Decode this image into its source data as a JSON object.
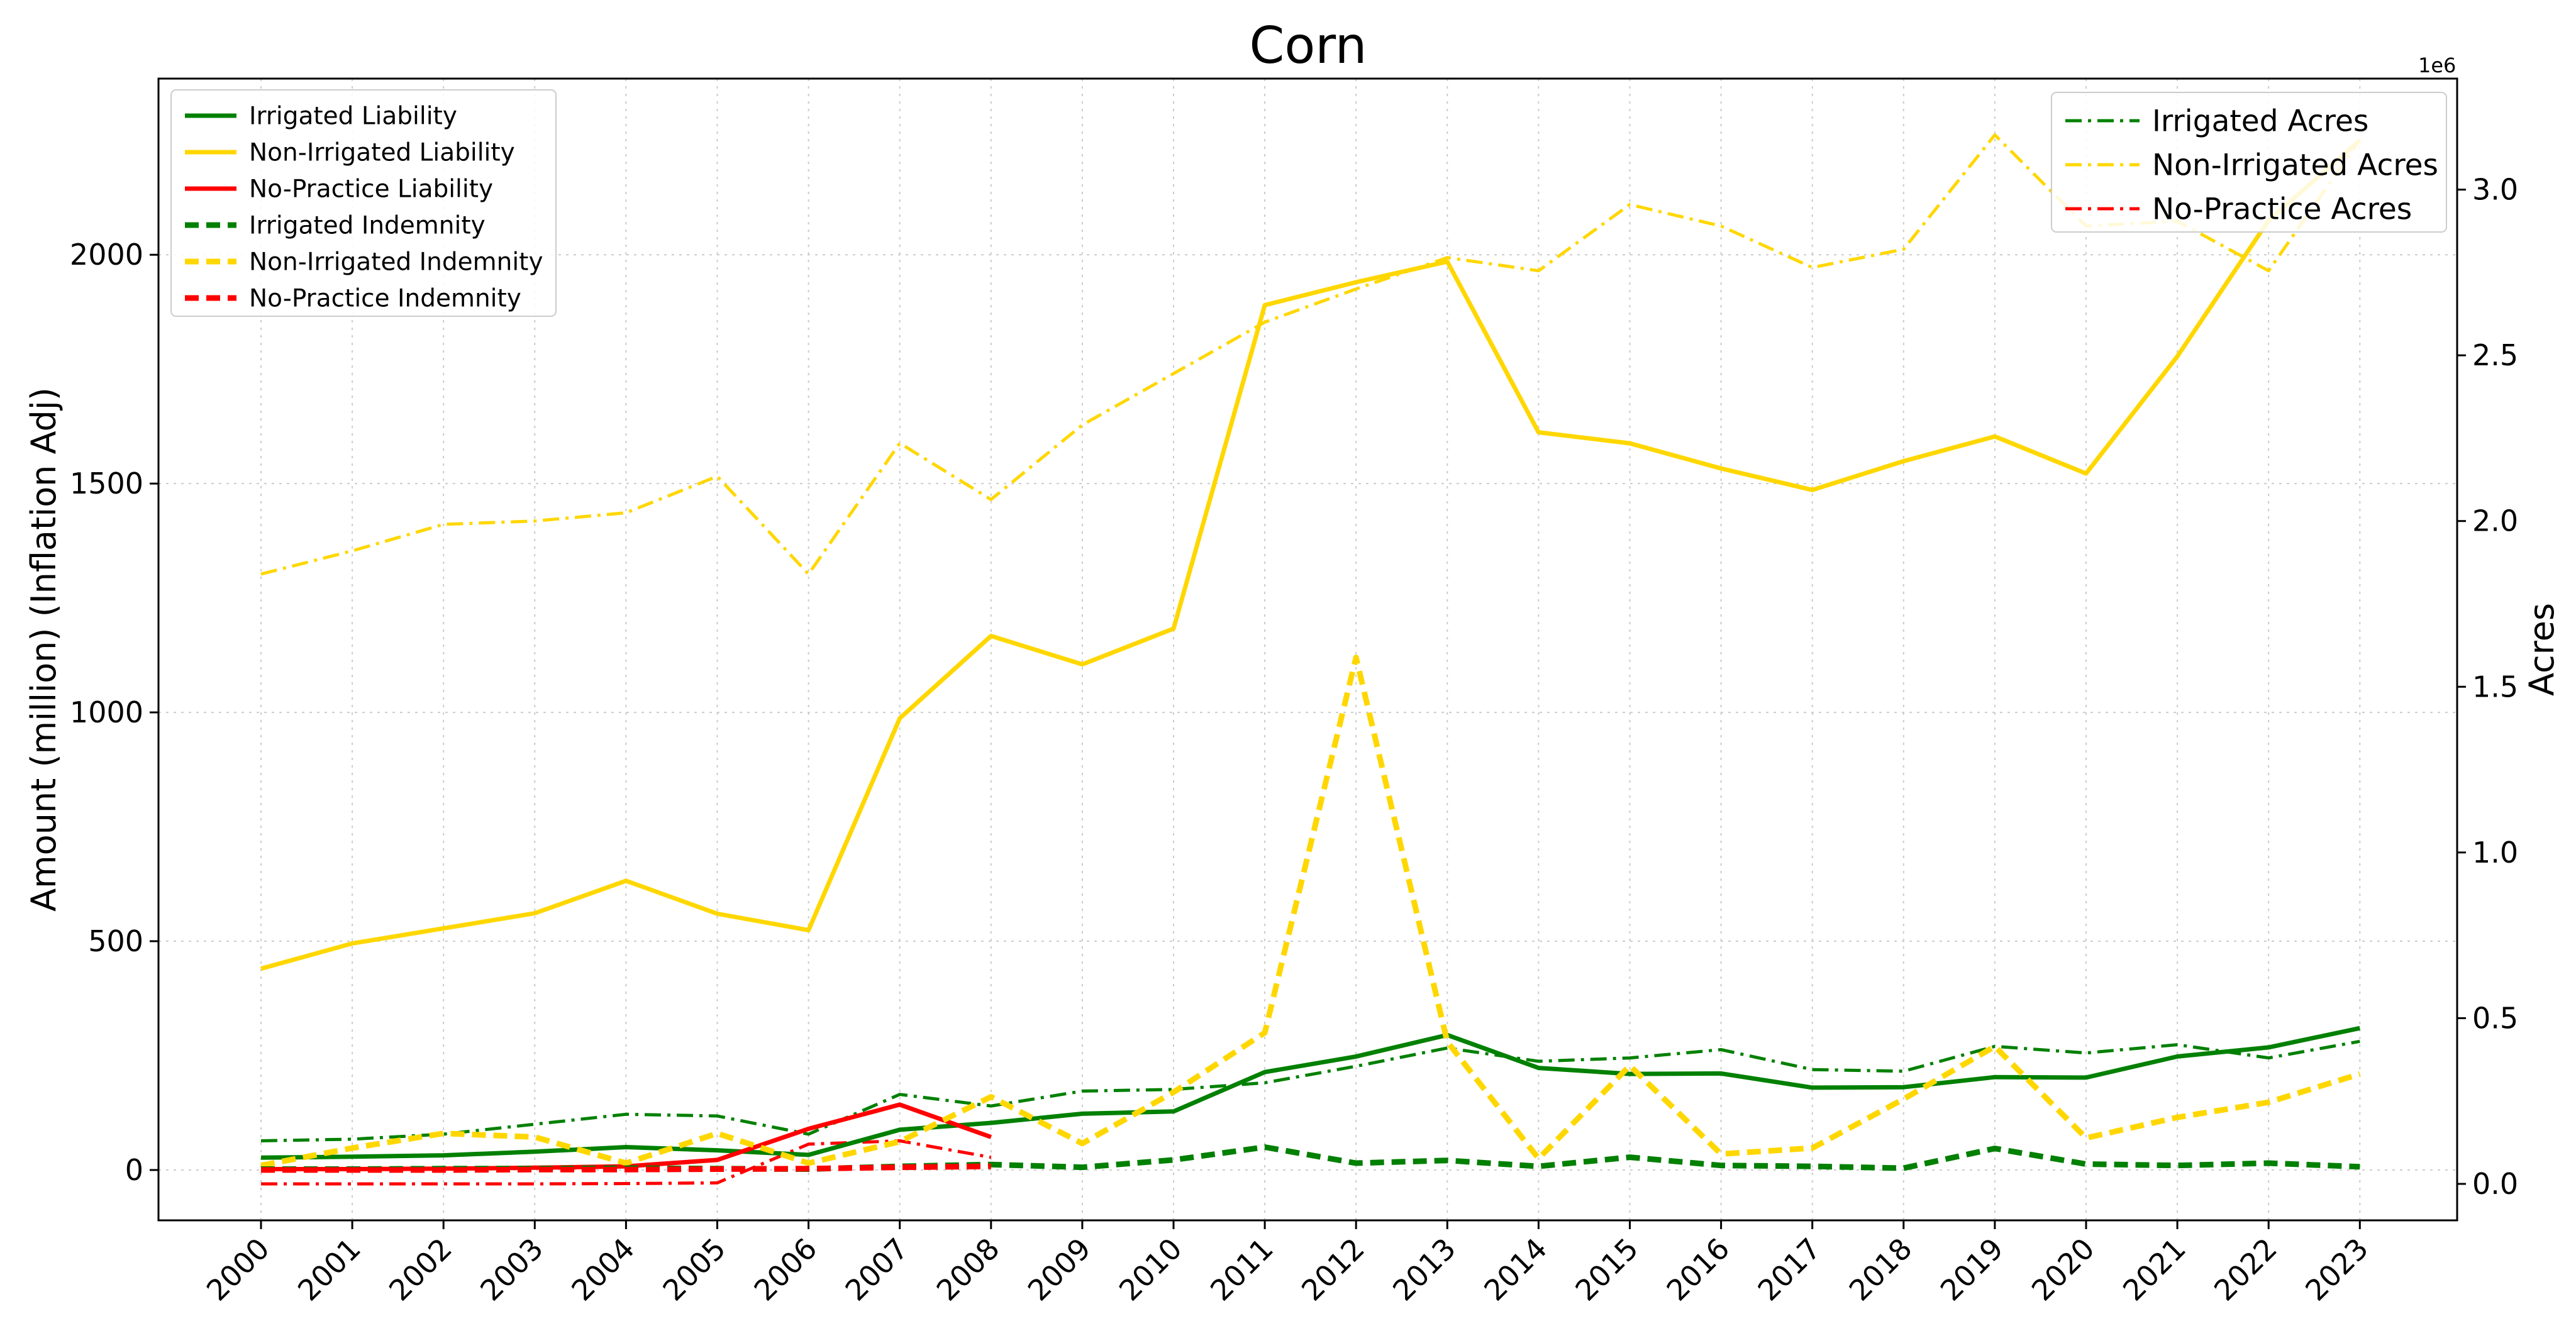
{
  "chart_data": {
    "type": "line",
    "title": "Corn",
    "xlabel": "",
    "ylabel": "Amount (million) (Inflation Adj)",
    "y2label": "Acres",
    "y2_offset_label": "1e6",
    "categories": [
      "2000",
      "2001",
      "2002",
      "2003",
      "2004",
      "2005",
      "2006",
      "2007",
      "2008",
      "2009",
      "2010",
      "2011",
      "2012",
      "2013",
      "2014",
      "2015",
      "2016",
      "2017",
      "2018",
      "2019",
      "2020",
      "2021",
      "2022",
      "2023"
    ],
    "ylim": [
      -110,
      2385
    ],
    "y2lim": [
      -110000,
      3335000
    ],
    "yticks": [
      0,
      500,
      1000,
      1500,
      2000
    ],
    "y2ticks": [
      0,
      500000,
      1000000,
      1500000,
      2000000,
      2500000,
      3000000
    ],
    "y2tick_labels": [
      "0.0",
      "0.5",
      "1.0",
      "1.5",
      "2.0",
      "2.5",
      "3.0"
    ],
    "grid": true,
    "legend_left_position": "top-left",
    "legend_right_position": "top-right",
    "colors": {
      "irrigated": "#008000",
      "non_irrigated": "#FFD700",
      "no_practice": "#FF0000"
    },
    "series": [
      {
        "name": "Irrigated Liability",
        "axis": "left",
        "color": "#008000",
        "style": "solid",
        "values": [
          27,
          29,
          32,
          40,
          50,
          43,
          33,
          88,
          103,
          123,
          128,
          214,
          248,
          295,
          223,
          210,
          211,
          180,
          181,
          203,
          202,
          248,
          268,
          310
        ]
      },
      {
        "name": "Non-Irrigated Liability",
        "axis": "left",
        "color": "#FFD700",
        "style": "solid",
        "values": [
          440,
          495,
          528,
          561,
          632,
          560,
          524,
          987,
          1167,
          1105,
          1183,
          1890,
          1940,
          1985,
          1612,
          1588,
          1533,
          1486,
          1549,
          1603,
          1522,
          1778,
          2075,
          2250
        ]
      },
      {
        "name": "No-Practice Liability",
        "axis": "left",
        "color": "#FF0000",
        "style": "solid",
        "values": [
          2,
          2,
          3,
          5,
          8,
          22,
          90,
          143,
          72,
          null,
          null,
          null,
          null,
          null,
          null,
          null,
          null,
          null,
          null,
          null,
          null,
          null,
          null,
          null
        ]
      },
      {
        "name": "Irrigated Indemnity",
        "axis": "left",
        "color": "#008000",
        "style": "dashed",
        "values": [
          2,
          2,
          3,
          3,
          4,
          3,
          2,
          8,
          12,
          6,
          22,
          50,
          15,
          21,
          8,
          28,
          10,
          8,
          4,
          47,
          13,
          10,
          15,
          7
        ]
      },
      {
        "name": "Non-Irrigated Indemnity",
        "axis": "left",
        "color": "#FFD700",
        "style": "dashed",
        "values": [
          10,
          48,
          80,
          72,
          15,
          80,
          15,
          62,
          160,
          58,
          170,
          300,
          1120,
          280,
          25,
          228,
          35,
          48,
          155,
          270,
          70,
          115,
          148,
          210
        ]
      },
      {
        "name": "No-Practice Indemnity",
        "axis": "left",
        "color": "#FF0000",
        "style": "dashed",
        "values": [
          0,
          0,
          0,
          1,
          1,
          2,
          3,
          6,
          8,
          null,
          null,
          null,
          null,
          null,
          null,
          null,
          null,
          null,
          null,
          null,
          null,
          null,
          null,
          null
        ]
      },
      {
        "name": "Irrigated Acres",
        "axis": "right",
        "color": "#008000",
        "style": "dashdot",
        "values": [
          130000,
          135000,
          150000,
          180000,
          210000,
          205000,
          150000,
          270000,
          235000,
          280000,
          285000,
          305000,
          355000,
          410000,
          370000,
          380000,
          405000,
          345000,
          340000,
          415000,
          395000,
          420000,
          380000,
          430000
        ]
      },
      {
        "name": "Non-Irrigated Acres",
        "axis": "right",
        "color": "#FFD700",
        "style": "dashdot",
        "values": [
          1840000,
          1910000,
          1990000,
          2000000,
          2025000,
          2135000,
          1840000,
          2235000,
          2065000,
          2290000,
          2445000,
          2600000,
          2700000,
          2795000,
          2755000,
          2955000,
          2890000,
          2765000,
          2820000,
          3165000,
          2890000,
          2905000,
          2755000,
          3150000
        ]
      },
      {
        "name": "No-Practice Acres",
        "axis": "right",
        "color": "#FF0000",
        "style": "dashdot",
        "values": [
          0,
          0,
          0,
          0,
          1000,
          3000,
          120000,
          130000,
          80000,
          null,
          null,
          null,
          null,
          null,
          null,
          null,
          null,
          null,
          null,
          null,
          null,
          null,
          null,
          null
        ]
      }
    ]
  }
}
